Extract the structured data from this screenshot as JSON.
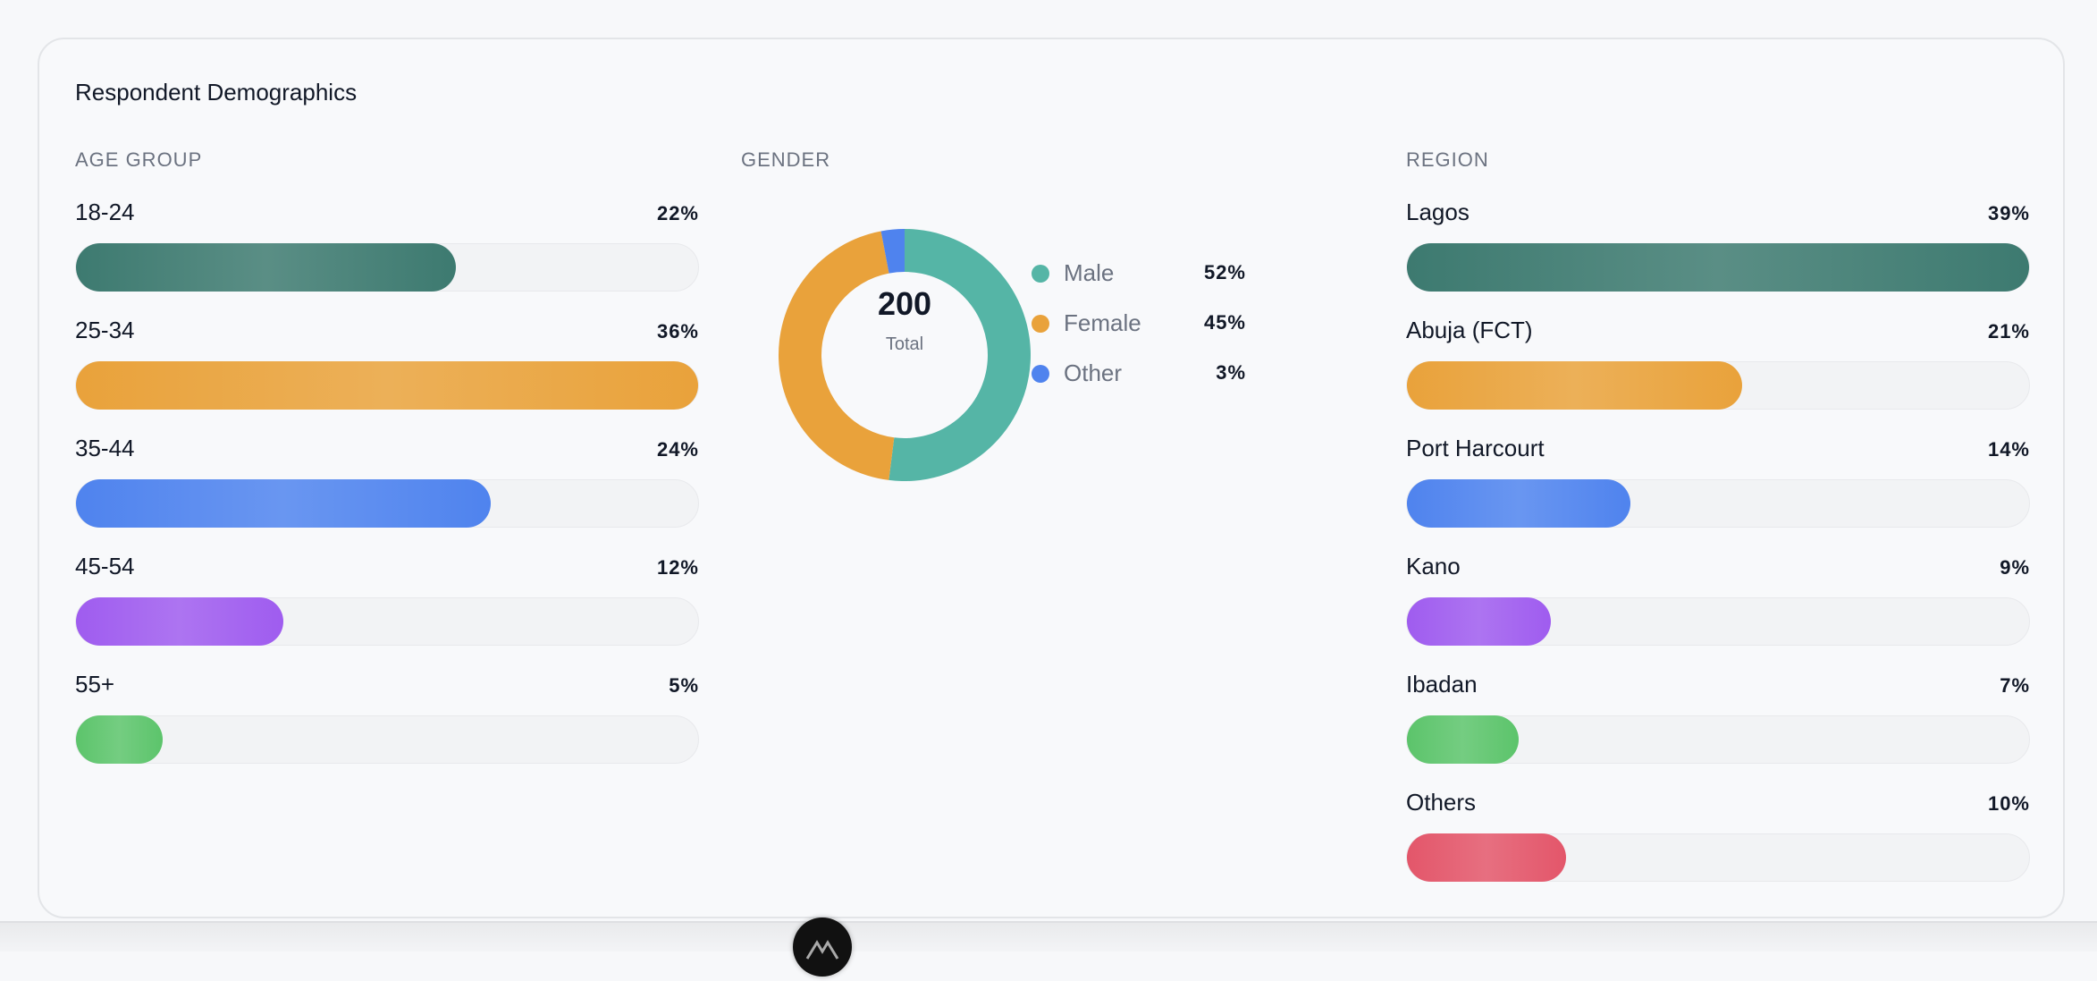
{
  "title": "Respondent Demographics",
  "chart_data": [
    {
      "type": "bar",
      "orientation": "horizontal",
      "title": "AGE GROUP",
      "categories": [
        "18-24",
        "25-34",
        "35-44",
        "45-54",
        "55+"
      ],
      "values": [
        22,
        36,
        24,
        12,
        5
      ],
      "labels": [
        "22%",
        "36%",
        "24%",
        "12%",
        "5%"
      ],
      "colors": [
        "#3d7a70",
        "#e9a23b",
        "#4f83ee",
        "#9f5cef",
        "#5cc46b"
      ]
    },
    {
      "type": "pie",
      "donut": true,
      "title": "GENDER",
      "center_value": "200",
      "center_label": "Total",
      "categories": [
        "Male",
        "Female",
        "Other"
      ],
      "values": [
        52,
        45,
        3
      ],
      "labels": [
        "52%",
        "45%",
        "3%"
      ],
      "colors": [
        "#55b5a6",
        "#e9a23b",
        "#4f83ee"
      ]
    },
    {
      "type": "bar",
      "orientation": "horizontal",
      "title": "REGION",
      "categories": [
        "Lagos",
        "Abuja (FCT)",
        "Port Harcourt",
        "Kano",
        "Ibadan",
        "Others"
      ],
      "values": [
        39,
        21,
        14,
        9,
        7,
        10
      ],
      "labels": [
        "39%",
        "21%",
        "14%",
        "9%",
        "7%",
        "10%"
      ],
      "colors": [
        "#3d7a70",
        "#e9a23b",
        "#4f83ee",
        "#9f5cef",
        "#5cc46b",
        "#e3566a"
      ]
    }
  ]
}
